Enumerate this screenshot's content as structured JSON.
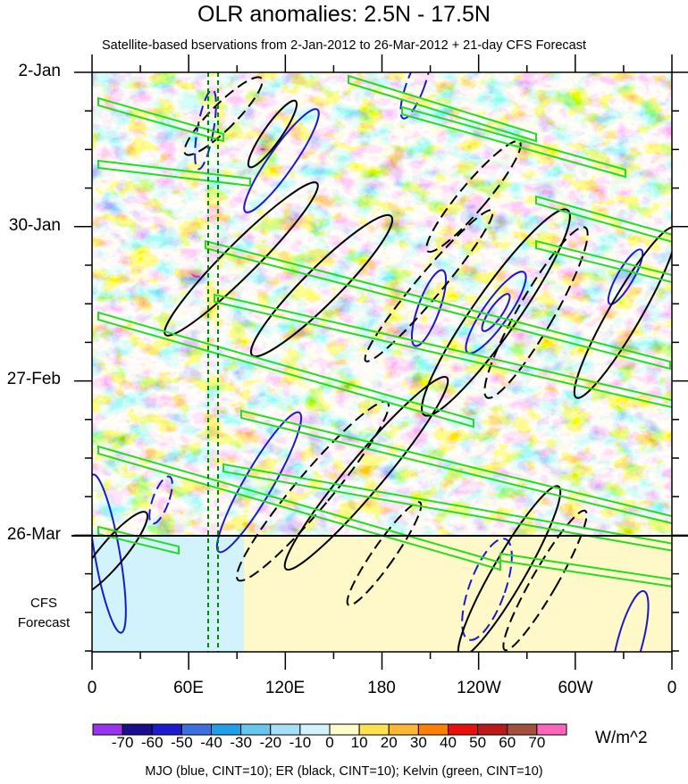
{
  "chart_data": {
    "type": "heatmap",
    "title": "OLR anomalies: 2.5N - 17.5N",
    "subtitle": "Satellite-based bservations from 2-Jan-2012 to 26-Mar-2012 + 21-day CFS Forecast",
    "y_axis": {
      "ticks": [
        "2-Jan",
        "30-Jan",
        "27-Feb",
        "26-Mar"
      ],
      "range": [
        "2-Jan-2012",
        "16-Apr-2012"
      ],
      "forecast_label": [
        "CFS",
        "Forecast"
      ]
    },
    "x_axis": {
      "ticks": [
        "0",
        "60E",
        "120E",
        "180",
        "120W",
        "60W",
        "0"
      ],
      "range_deg": [
        0,
        360
      ]
    },
    "colorbar": {
      "labels": [
        "-70",
        "-60",
        "-50",
        "-40",
        "-30",
        "-20",
        "-10",
        "0",
        "10",
        "20",
        "30",
        "40",
        "50",
        "60",
        "70"
      ],
      "colors": [
        "#9933ee",
        "#1a0e8c",
        "#1c1ccc",
        "#3d6fdd",
        "#1f9fe8",
        "#65c6ee",
        "#a6e0f6",
        "#d2f3fb",
        "#fffccb",
        "#ffe24d",
        "#ffb733",
        "#ff7f00",
        "#e8110f",
        "#bb1a1a",
        "#a3503e",
        "#ff66bb"
      ],
      "units": "W/m^2"
    },
    "footer": "MJO (blue, CINT=10); ER (black, CINT=10); Kelvin (green, CINT=10)"
  }
}
